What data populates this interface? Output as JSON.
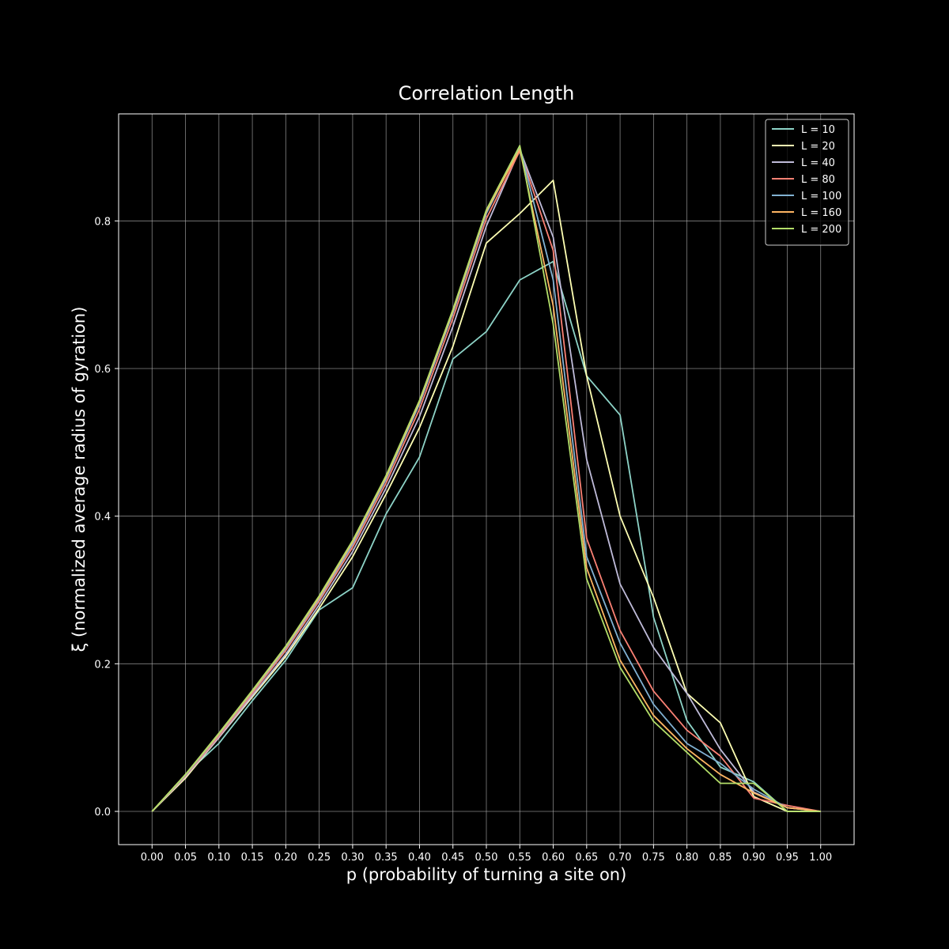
{
  "chart_data": {
    "type": "line",
    "title": "Correlation Length",
    "xlabel": "p (probability of turning a site on)",
    "ylabel": "ξ (normalized average radius of gyration)",
    "xlim": [
      -0.05,
      1.05
    ],
    "ylim": [
      -0.045,
      0.945
    ],
    "x_ticks": [
      "0.00",
      "0.05",
      "0.10",
      "0.15",
      "0.20",
      "0.25",
      "0.30",
      "0.35",
      "0.40",
      "0.45",
      "0.50",
      "0.55",
      "0.60",
      "0.65",
      "0.70",
      "0.75",
      "0.80",
      "0.85",
      "0.90",
      "0.95",
      "1.00"
    ],
    "x_tick_values": [
      0,
      0.05,
      0.1,
      0.15,
      0.2,
      0.25,
      0.3,
      0.35,
      0.4,
      0.45,
      0.5,
      0.55,
      0.6,
      0.65,
      0.7,
      0.75,
      0.8,
      0.85,
      0.9,
      0.95,
      1.0
    ],
    "y_ticks": [
      "0.0",
      "0.2",
      "0.4",
      "0.6",
      "0.8"
    ],
    "y_tick_values": [
      0,
      0.2,
      0.4,
      0.6,
      0.8
    ],
    "grid": true,
    "legend_position": "top-right",
    "x": [
      0,
      0.05,
      0.1,
      0.15,
      0.2,
      0.25,
      0.3,
      0.35,
      0.4,
      0.45,
      0.5,
      0.55,
      0.6,
      0.65,
      0.7,
      0.75,
      0.8,
      0.85,
      0.9,
      0.95,
      1.0
    ],
    "series": [
      {
        "name": "L = 10",
        "color": "#8dd3c7",
        "values": [
          0,
          0.05,
          0.092,
          0.15,
          0.205,
          0.273,
          0.303,
          0.403,
          0.48,
          0.613,
          0.65,
          0.72,
          0.745,
          0.59,
          0.537,
          0.263,
          0.123,
          0.06,
          0.04,
          0,
          0
        ]
      },
      {
        "name": "L = 20",
        "color": "#feffb3",
        "values": [
          0,
          0.045,
          0.1,
          0.155,
          0.21,
          0.275,
          0.345,
          0.43,
          0.52,
          0.63,
          0.77,
          0.81,
          0.855,
          0.59,
          0.4,
          0.29,
          0.16,
          0.12,
          0.02,
          0,
          0
        ]
      },
      {
        "name": "L = 40",
        "color": "#bfbbd9",
        "values": [
          0,
          0.047,
          0.1,
          0.157,
          0.213,
          0.28,
          0.352,
          0.438,
          0.535,
          0.657,
          0.793,
          0.897,
          0.778,
          0.477,
          0.308,
          0.222,
          0.16,
          0.084,
          0.026,
          0.005,
          0
        ]
      },
      {
        "name": "L = 80",
        "color": "#fa8174",
        "values": [
          0,
          0.048,
          0.102,
          0.16,
          0.218,
          0.285,
          0.358,
          0.445,
          0.545,
          0.668,
          0.803,
          0.895,
          0.76,
          0.37,
          0.245,
          0.163,
          0.11,
          0.075,
          0.018,
          0.008,
          0
        ]
      },
      {
        "name": "L = 100",
        "color": "#81b1d2",
        "values": [
          0,
          0.049,
          0.104,
          0.162,
          0.221,
          0.288,
          0.362,
          0.45,
          0.552,
          0.675,
          0.81,
          0.9,
          0.72,
          0.345,
          0.228,
          0.145,
          0.092,
          0.065,
          0.03,
          0.005,
          0
        ]
      },
      {
        "name": "L = 160",
        "color": "#fdb462",
        "values": [
          0,
          0.05,
          0.105,
          0.163,
          0.223,
          0.29,
          0.365,
          0.453,
          0.555,
          0.678,
          0.813,
          0.897,
          0.685,
          0.33,
          0.205,
          0.13,
          0.085,
          0.05,
          0.025,
          0.005,
          0
        ]
      },
      {
        "name": "L = 200",
        "color": "#b3de69",
        "values": [
          0,
          0.05,
          0.106,
          0.164,
          0.224,
          0.292,
          0.367,
          0.455,
          0.557,
          0.68,
          0.815,
          0.902,
          0.66,
          0.315,
          0.195,
          0.122,
          0.08,
          0.038,
          0.038,
          0,
          0
        ]
      }
    ],
    "styles": {
      "background": "#000000",
      "text_color": "#ffffff",
      "grid_color": "#b0b0b0",
      "axes_color": "#ffffff"
    }
  }
}
